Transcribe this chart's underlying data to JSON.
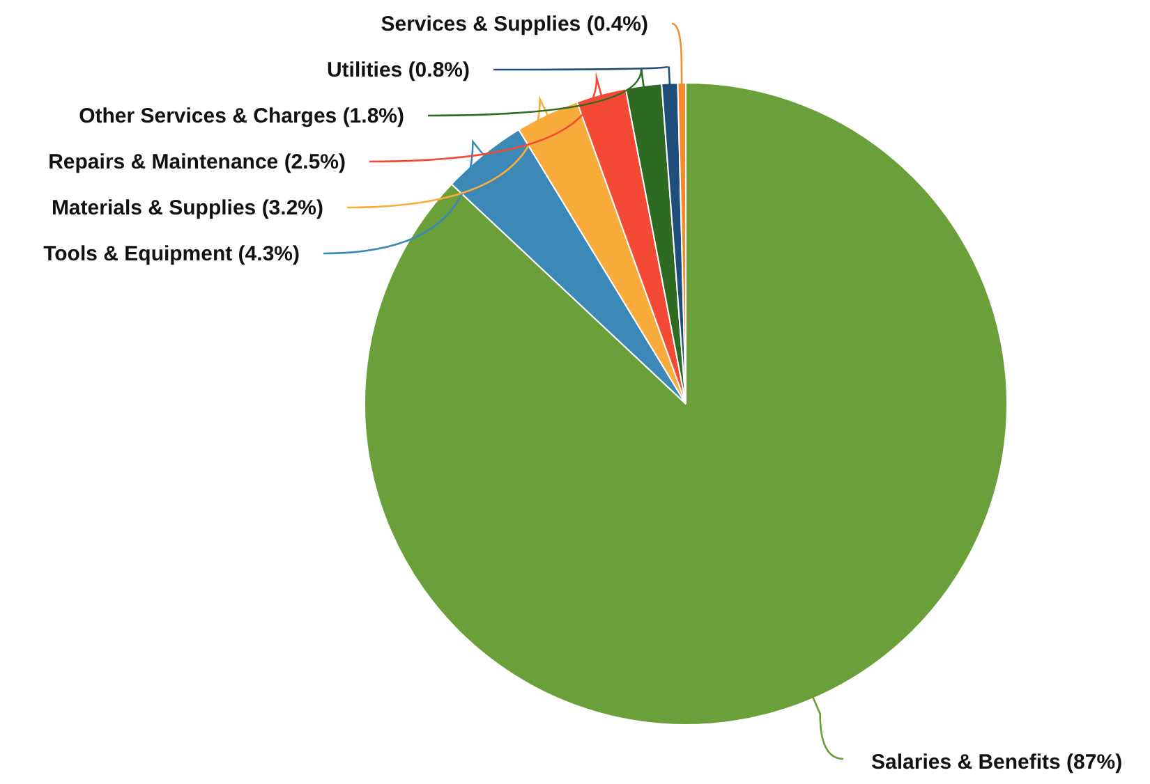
{
  "chart_data": {
    "type": "pie",
    "categories": [
      "Salaries & Benefits",
      "Tools & Equipment",
      "Materials & Supplies",
      "Repairs & Maintenance",
      "Other Services & Charges",
      "Utilities",
      "Services & Supplies"
    ],
    "values": [
      87,
      4.3,
      3.2,
      2.5,
      1.8,
      0.8,
      0.4
    ],
    "value_labels": [
      "(87%)",
      "(4.3%)",
      "(3.2%)",
      "(2.5%)",
      "(1.8%)",
      "(0.8%)",
      "(0.4%)"
    ],
    "colors": [
      "#6a9f3a",
      "#3c88b7",
      "#f9ac3c",
      "#f44a35",
      "#2e6a21",
      "#1f4e7a",
      "#f58b2b"
    ],
    "legend": false
  }
}
